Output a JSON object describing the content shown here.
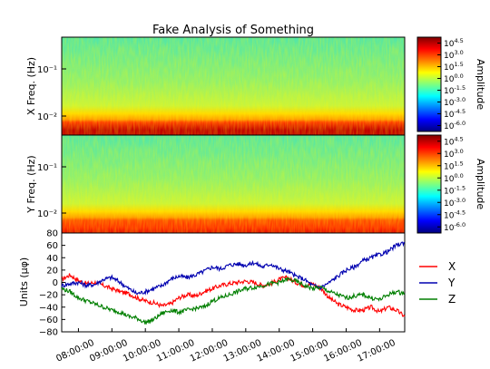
{
  "title": "Fake Analysis of Something",
  "colorbar_colors": [
    "#00007f",
    "#0000ff",
    "#007fff",
    "#00ffff",
    "#7fff7f",
    "#ffff00",
    "#ff7f00",
    "#ff0000",
    "#7f0000"
  ],
  "chart_data": [
    {
      "type": "heatmap",
      "ylabel": "X Freq. (Hz)",
      "yscale": "log",
      "ylim": [
        0.005,
        0.5
      ],
      "y_ticks": [
        "10⁻¹",
        "10⁻²"
      ],
      "colorbar": {
        "label": "Amplitude",
        "scale": "log",
        "ticks": [
          "10^4.5",
          "10^3.0",
          "10^1.5",
          "10^0.0",
          "10^-1.5",
          "10^-3.0",
          "10^-4.5",
          "10^-6.0"
        ]
      }
    },
    {
      "type": "heatmap",
      "ylabel": "Y Freq. (Hz)",
      "yscale": "log",
      "ylim": [
        0.005,
        0.5
      ],
      "y_ticks": [
        "10⁻¹",
        "10⁻²"
      ],
      "colorbar": {
        "label": "Amplitude",
        "scale": "log",
        "ticks": [
          "10^4.5",
          "10^3.0",
          "10^1.5",
          "10^0.0",
          "10^-1.5",
          "10^-3.0",
          "10^-4.5",
          "10^-6.0"
        ]
      }
    },
    {
      "type": "line",
      "ylabel": "Units (μφ)",
      "ylim": [
        -80,
        80
      ],
      "y_ticks": [
        80,
        60,
        40,
        20,
        0,
        -20,
        -40,
        -60,
        -80
      ],
      "xlim": [
        7.5,
        17.75
      ],
      "x_ticks": [
        "08:00:00",
        "09:00:00",
        "10:00:00",
        "11:00:00",
        "12:00:00",
        "13:00:00",
        "14:00:00",
        "15:00:00",
        "16:00:00",
        "17:00:00"
      ],
      "x_tick_hours": [
        8,
        9,
        10,
        11,
        12,
        13,
        14,
        15,
        16,
        17
      ],
      "legend_position": "right",
      "series": [
        {
          "name": "X",
          "color": "#ff0000",
          "x": [
            7.5,
            7.75,
            8.0,
            8.25,
            8.5,
            8.75,
            9.0,
            9.25,
            9.5,
            9.75,
            10.0,
            10.25,
            10.5,
            10.75,
            11.0,
            11.25,
            11.5,
            11.75,
            12.0,
            12.25,
            12.5,
            12.75,
            13.0,
            13.25,
            13.5,
            13.75,
            14.0,
            14.25,
            14.5,
            14.75,
            15.0,
            15.25,
            15.5,
            15.75,
            16.0,
            16.25,
            16.5,
            16.75,
            17.0,
            17.25,
            17.5,
            17.75
          ],
          "y": [
            5,
            12,
            3,
            -2,
            0,
            -5,
            -10,
            -15,
            -18,
            -25,
            -30,
            -33,
            -38,
            -35,
            -25,
            -20,
            -22,
            -15,
            -10,
            -5,
            -2,
            0,
            2,
            0,
            -5,
            -2,
            5,
            8,
            0,
            -5,
            -2,
            -10,
            -25,
            -35,
            -40,
            -45,
            -45,
            -40,
            -48,
            -40,
            -45,
            -55
          ]
        },
        {
          "name": "Y",
          "color": "#0000b0",
          "x": [
            7.5,
            7.75,
            8.0,
            8.25,
            8.5,
            8.75,
            9.0,
            9.25,
            9.5,
            9.75,
            10.0,
            10.25,
            10.5,
            10.75,
            11.0,
            11.25,
            11.5,
            11.75,
            12.0,
            12.25,
            12.5,
            12.75,
            13.0,
            13.25,
            13.5,
            13.75,
            14.0,
            14.25,
            14.5,
            14.75,
            15.0,
            15.25,
            15.5,
            15.75,
            16.0,
            16.25,
            16.5,
            16.75,
            17.0,
            17.25,
            17.5,
            17.75
          ],
          "y": [
            -5,
            -2,
            0,
            -5,
            -3,
            5,
            8,
            0,
            -10,
            -18,
            -15,
            -10,
            -5,
            5,
            10,
            8,
            12,
            18,
            25,
            22,
            28,
            30,
            28,
            32,
            25,
            30,
            22,
            18,
            10,
            5,
            -5,
            -8,
            0,
            10,
            20,
            25,
            35,
            40,
            45,
            50,
            60,
            65
          ]
        },
        {
          "name": "Z",
          "color": "#007f00",
          "x": [
            7.5,
            7.75,
            8.0,
            8.25,
            8.5,
            8.75,
            9.0,
            9.25,
            9.5,
            9.75,
            10.0,
            10.25,
            10.5,
            10.75,
            11.0,
            11.25,
            11.5,
            11.75,
            12.0,
            12.25,
            12.5,
            12.75,
            13.0,
            13.25,
            13.5,
            13.75,
            14.0,
            14.25,
            14.5,
            14.75,
            15.0,
            15.25,
            15.5,
            15.75,
            16.0,
            16.25,
            16.5,
            16.75,
            17.0,
            17.25,
            17.5,
            17.75
          ],
          "y": [
            -10,
            -15,
            -25,
            -30,
            -35,
            -40,
            -45,
            -48,
            -55,
            -58,
            -65,
            -60,
            -50,
            -45,
            -48,
            -45,
            -42,
            -40,
            -30,
            -25,
            -20,
            -15,
            -10,
            -8,
            -5,
            -2,
            0,
            5,
            2,
            -5,
            -10,
            -8,
            -15,
            -20,
            -25,
            -22,
            -20,
            -25,
            -28,
            -20,
            -15,
            -18
          ]
        }
      ]
    }
  ]
}
